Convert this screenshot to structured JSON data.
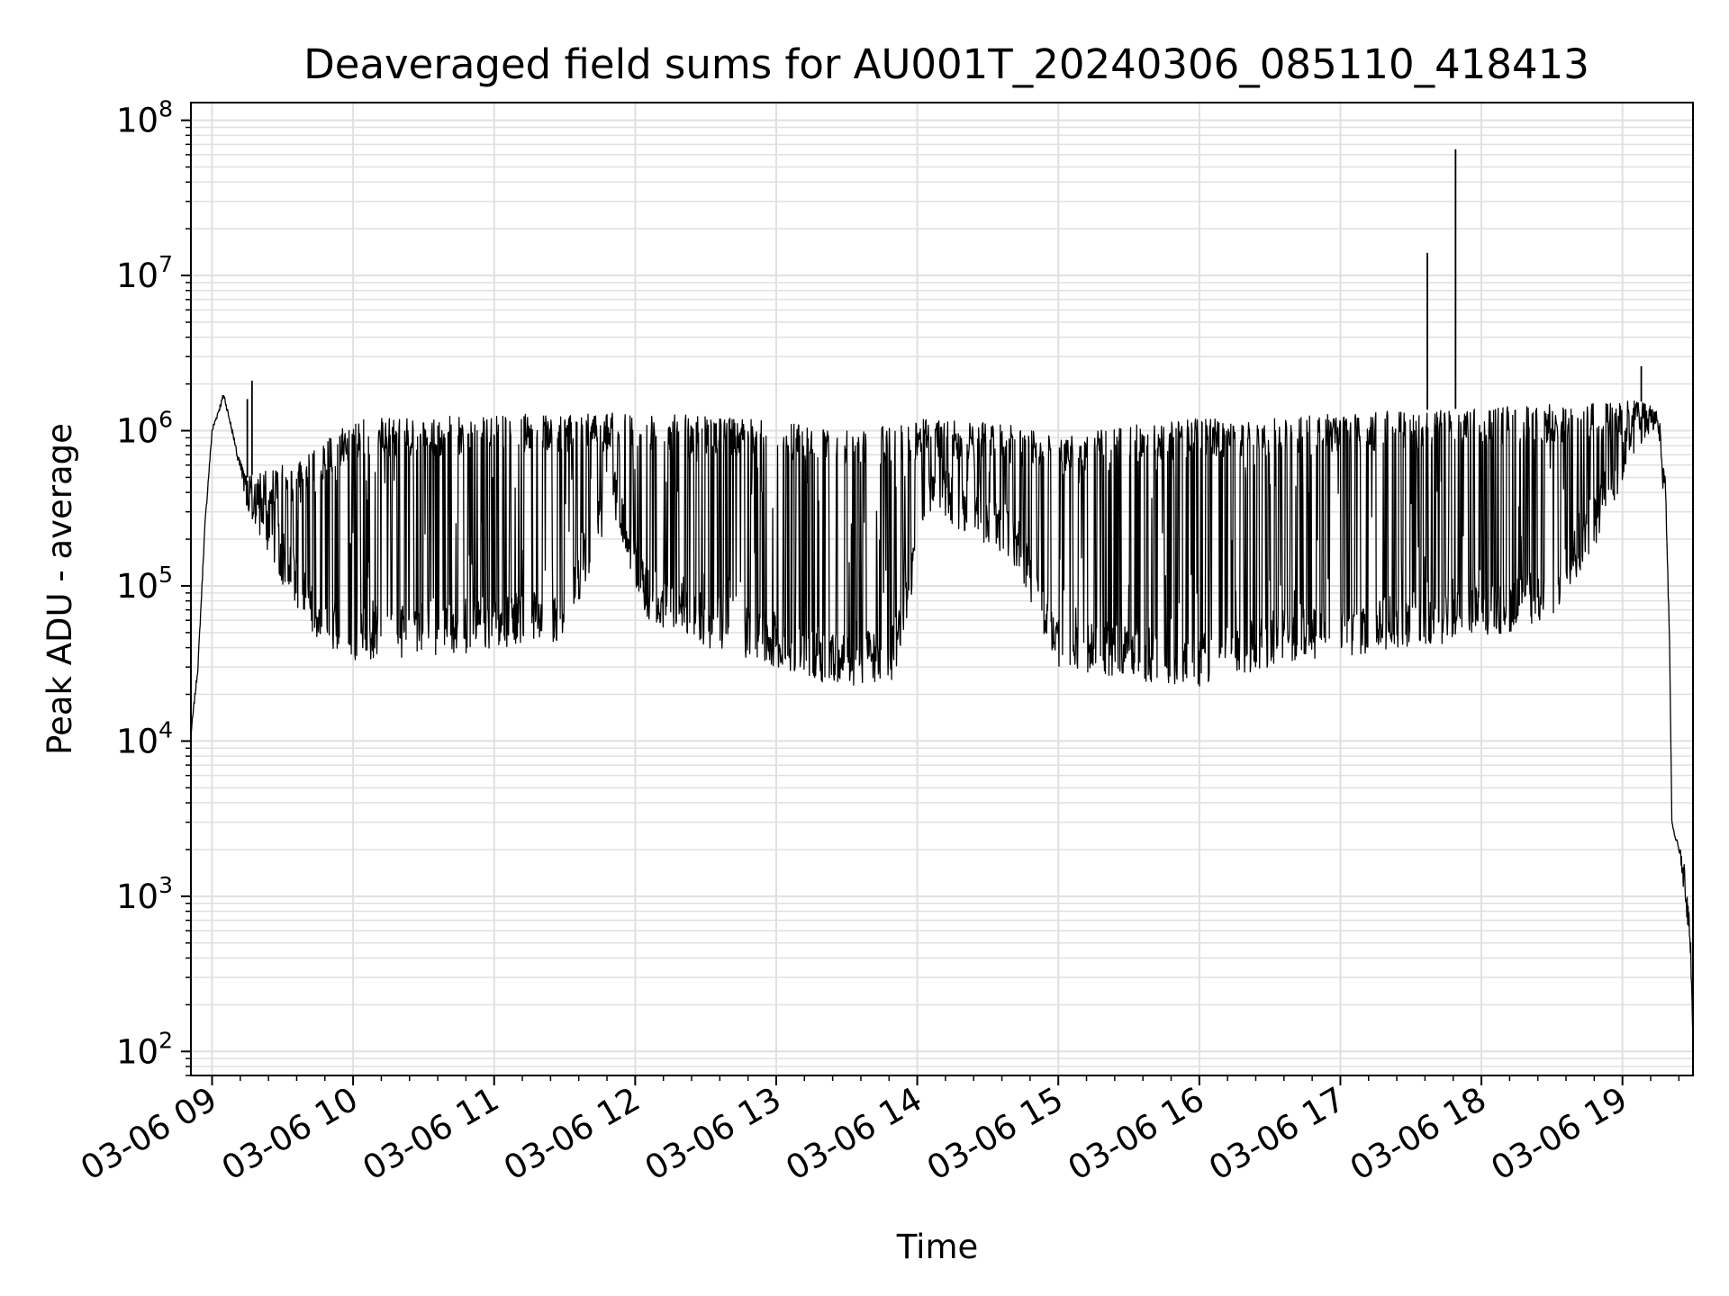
{
  "chart_data": {
    "type": "line",
    "title": "Deaveraged field sums for AU001T_20240306_085110_418413",
    "xlabel": "Time",
    "ylabel": "Peak ADU - average",
    "yscale": "log",
    "xlim": [
      "2024-03-06 08:51",
      "2024-03-06 19:30"
    ],
    "ylim": [
      70,
      130000000
    ],
    "grid": true,
    "line_color": "#000000",
    "grid_color": "#e0e0e0",
    "x_ticks": [
      {
        "value": "2024-03-06 09:00",
        "label": "03-06 09"
      },
      {
        "value": "2024-03-06 10:00",
        "label": "03-06 10"
      },
      {
        "value": "2024-03-06 11:00",
        "label": "03-06 11"
      },
      {
        "value": "2024-03-06 12:00",
        "label": "03-06 12"
      },
      {
        "value": "2024-03-06 13:00",
        "label": "03-06 13"
      },
      {
        "value": "2024-03-06 14:00",
        "label": "03-06 14"
      },
      {
        "value": "2024-03-06 15:00",
        "label": "03-06 15"
      },
      {
        "value": "2024-03-06 16:00",
        "label": "03-06 16"
      },
      {
        "value": "2024-03-06 17:00",
        "label": "03-06 17"
      },
      {
        "value": "2024-03-06 18:00",
        "label": "03-06 18"
      },
      {
        "value": "2024-03-06 19:00",
        "label": "03-06 19"
      }
    ],
    "y_ticks": [
      {
        "value": 100,
        "base": "10",
        "exp": "2"
      },
      {
        "value": 1000,
        "base": "10",
        "exp": "3"
      },
      {
        "value": 10000,
        "base": "10",
        "exp": "4"
      },
      {
        "value": 100000,
        "base": "10",
        "exp": "5"
      },
      {
        "value": 1000000,
        "base": "10",
        "exp": "6"
      },
      {
        "value": 10000000,
        "base": "10",
        "exp": "7"
      },
      {
        "value": 100000000,
        "base": "10",
        "exp": "8"
      }
    ],
    "series": [
      {
        "envelope": [
          {
            "t": "2024-03-06 08:51",
            "lo": 11000,
            "hi": 11000
          },
          {
            "t": "2024-03-06 08:54",
            "lo": 30000,
            "hi": 30000
          },
          {
            "t": "2024-03-06 08:57",
            "lo": 250000,
            "hi": 250000
          },
          {
            "t": "2024-03-06 09:00",
            "lo": 1000000,
            "hi": 1000000
          },
          {
            "t": "2024-03-06 09:05",
            "lo": 1700000,
            "hi": 1700000
          },
          {
            "t": "2024-03-06 09:10",
            "lo": 800000,
            "hi": 800000
          },
          {
            "t": "2024-03-06 09:15",
            "lo": 300000,
            "hi": 500000
          },
          {
            "t": "2024-03-06 09:25",
            "lo": 150000,
            "hi": 600000
          },
          {
            "t": "2024-03-06 09:35",
            "lo": 70000,
            "hi": 600000
          },
          {
            "t": "2024-03-06 09:45",
            "lo": 45000,
            "hi": 800000
          },
          {
            "t": "2024-03-06 10:00",
            "lo": 32000,
            "hi": 1200000
          },
          {
            "t": "2024-03-06 10:30",
            "lo": 35000,
            "hi": 1200000
          },
          {
            "t": "2024-03-06 11:00",
            "lo": 38000,
            "hi": 1300000
          },
          {
            "t": "2024-03-06 11:30",
            "lo": 45000,
            "hi": 1300000
          },
          {
            "t": "2024-03-06 11:50",
            "lo": 300000,
            "hi": 1300000
          },
          {
            "t": "2024-03-06 12:05",
            "lo": 60000,
            "hi": 1300000
          },
          {
            "t": "2024-03-06 12:30",
            "lo": 40000,
            "hi": 1250000
          },
          {
            "t": "2024-03-06 13:00",
            "lo": 30000,
            "hi": 1200000
          },
          {
            "t": "2024-03-06 13:25",
            "lo": 22000,
            "hi": 1000000
          },
          {
            "t": "2024-03-06 13:50",
            "lo": 25000,
            "hi": 1100000
          },
          {
            "t": "2024-03-06 14:05",
            "lo": 300000,
            "hi": 1200000
          },
          {
            "t": "2024-03-06 14:40",
            "lo": 150000,
            "hi": 1100000
          },
          {
            "t": "2024-03-06 15:00",
            "lo": 30000,
            "hi": 900000
          },
          {
            "t": "2024-03-06 15:30",
            "lo": 25000,
            "hi": 1100000
          },
          {
            "t": "2024-03-06 16:00",
            "lo": 22000,
            "hi": 1200000
          },
          {
            "t": "2024-03-06 16:30",
            "lo": 30000,
            "hi": 1200000
          },
          {
            "t": "2024-03-06 17:00",
            "lo": 35000,
            "hi": 1300000
          },
          {
            "t": "2024-03-06 17:30",
            "lo": 40000,
            "hi": 1350000
          },
          {
            "t": "2024-03-06 18:00",
            "lo": 45000,
            "hi": 1400000
          },
          {
            "t": "2024-03-06 18:30",
            "lo": 60000,
            "hi": 1500000
          },
          {
            "t": "2024-03-06 18:50",
            "lo": 200000,
            "hi": 1500000
          },
          {
            "t": "2024-03-06 19:05",
            "lo": 700000,
            "hi": 1600000
          },
          {
            "t": "2024-03-06 19:15",
            "lo": 1100000,
            "hi": 1400000
          },
          {
            "t": "2024-03-06 19:18",
            "lo": 300000,
            "hi": 800000
          },
          {
            "t": "2024-03-06 19:20",
            "lo": 50000,
            "hi": 50000
          },
          {
            "t": "2024-03-06 19:21",
            "lo": 3000,
            "hi": 3000
          },
          {
            "t": "2024-03-06 19:24",
            "lo": 2000,
            "hi": 2200
          },
          {
            "t": "2024-03-06 19:27",
            "lo": 800,
            "hi": 1500
          },
          {
            "t": "2024-03-06 19:29",
            "lo": 400,
            "hi": 600
          },
          {
            "t": "2024-03-06 19:30",
            "lo": 120,
            "hi": 120
          }
        ],
        "spikes": [
          {
            "t": "2024-03-06 09:15",
            "v": 1600000
          },
          {
            "t": "2024-03-06 09:17",
            "v": 2100000
          },
          {
            "t": "2024-03-06 17:37",
            "v": 14000000
          },
          {
            "t": "2024-03-06 17:49",
            "v": 65000000
          },
          {
            "t": "2024-03-06 19:08",
            "v": 2600000
          }
        ]
      }
    ]
  }
}
